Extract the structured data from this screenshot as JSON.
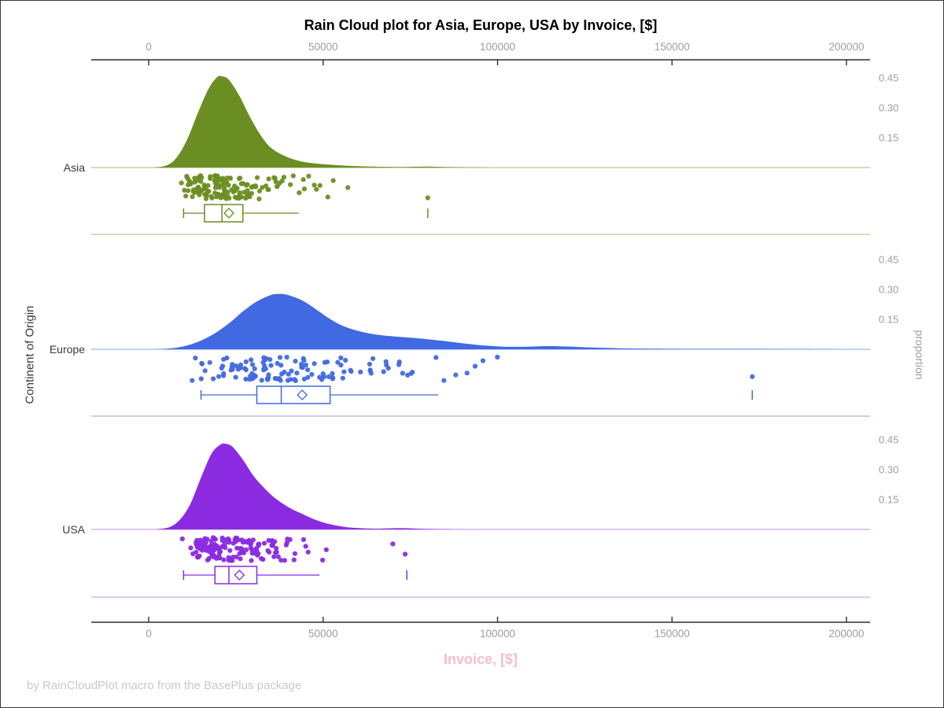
{
  "title": "Rain Cloud plot for Asia, Europe, USA by Invoice, [$]",
  "footer": "by RainCloudPlot macro from the BasePlus package",
  "x_axis": {
    "label": "Invoice, [$]",
    "label_color": "#f8bdca",
    "range": [
      0,
      200000
    ],
    "ticks": [
      0,
      50000,
      100000,
      150000,
      200000
    ],
    "tick_labels": [
      "0",
      "50000",
      "100000",
      "150000",
      "200000"
    ]
  },
  "y_axis": {
    "label": "Continent of Origin",
    "categories": [
      "Asia",
      "Europe",
      "USA"
    ]
  },
  "y2_axis": {
    "label": "proportion",
    "ticks": [
      0.15,
      0.3,
      0.45
    ],
    "tick_labels": [
      "0.15",
      "0.30",
      "0.45"
    ]
  },
  "chart_data": {
    "type": "raincloud (half-violin density + jittered strip + box plot per category)",
    "title": "Rain Cloud plot for Asia, Europe, USA by Invoice, [$]",
    "xlabel": "Invoice, [$]",
    "ylabel": "Continent of Origin",
    "y2label": "proportion",
    "xlim": [
      0,
      200000
    ],
    "proportion_ticks": [
      0.15,
      0.3,
      0.45
    ],
    "legend": "none",
    "grid": "off",
    "groups": [
      {
        "name": "Asia",
        "color": "#6B8E23",
        "light_color": "#b9c98f",
        "density_peak": {
          "x": 20500,
          "proportion": 0.46
        },
        "density": [
          [
            1000,
            0
          ],
          [
            5000,
            0.01
          ],
          [
            8000,
            0.05
          ],
          [
            11000,
            0.14
          ],
          [
            14000,
            0.27
          ],
          [
            17000,
            0.39
          ],
          [
            19500,
            0.452
          ],
          [
            21000,
            0.458
          ],
          [
            23000,
            0.44
          ],
          [
            26000,
            0.36
          ],
          [
            29000,
            0.255
          ],
          [
            32000,
            0.165
          ],
          [
            35000,
            0.1
          ],
          [
            39000,
            0.058
          ],
          [
            43000,
            0.034
          ],
          [
            48000,
            0.02
          ],
          [
            54000,
            0.012
          ],
          [
            60000,
            0.007
          ],
          [
            67000,
            0.004
          ],
          [
            73000,
            0.003
          ],
          [
            79000,
            0.005
          ],
          [
            85000,
            0.003
          ],
          [
            92000,
            0.001
          ],
          [
            100000,
            0
          ]
        ],
        "box": {
          "min": 10000,
          "q1": 16000,
          "median": 21000,
          "mean": 23000,
          "q3": 27000,
          "max": 43000,
          "outliers": [
            80000
          ]
        },
        "rain": {
          "n": 150,
          "median": 21000,
          "log_sigma": 0.4,
          "clamp": [
            8500,
            62000
          ],
          "extras": [
            80000
          ]
        }
      },
      {
        "name": "Europe",
        "color": "#4169E1",
        "light_color": "#9db8f0",
        "density_peak": {
          "x": 37500,
          "proportion": 0.28
        },
        "density": [
          [
            2000,
            0
          ],
          [
            8000,
            0.008
          ],
          [
            13000,
            0.03
          ],
          [
            18000,
            0.07
          ],
          [
            23000,
            0.13
          ],
          [
            27000,
            0.19
          ],
          [
            31000,
            0.24
          ],
          [
            35000,
            0.272
          ],
          [
            37500,
            0.278
          ],
          [
            40000,
            0.272
          ],
          [
            44000,
            0.245
          ],
          [
            48000,
            0.2
          ],
          [
            52000,
            0.152
          ],
          [
            56000,
            0.115
          ],
          [
            61000,
            0.088
          ],
          [
            66000,
            0.072
          ],
          [
            72000,
            0.062
          ],
          [
            78000,
            0.054
          ],
          [
            84000,
            0.043
          ],
          [
            90000,
            0.03
          ],
          [
            96000,
            0.019
          ],
          [
            102000,
            0.013
          ],
          [
            108000,
            0.013
          ],
          [
            114000,
            0.016
          ],
          [
            120000,
            0.014
          ],
          [
            127000,
            0.009
          ],
          [
            135000,
            0.005
          ],
          [
            145000,
            0.003
          ],
          [
            158000,
            0.002
          ],
          [
            172000,
            0.002
          ],
          [
            185000,
            0.001
          ],
          [
            200000,
            0
          ]
        ],
        "box": {
          "min": 15000,
          "q1": 31000,
          "median": 38000,
          "mean": 44000,
          "q3": 52000,
          "max": 83000,
          "outliers": [
            173000
          ]
        },
        "rain": {
          "n": 125,
          "median": 38000,
          "log_sigma": 0.48,
          "clamp": [
            12000,
            126000
          ],
          "extras": [
            173000
          ]
        }
      },
      {
        "name": "USA",
        "color": "#8A2BE2",
        "light_color": "#c9a6ee",
        "density_peak": {
          "x": 21500,
          "proportion": 0.43
        },
        "density": [
          [
            2000,
            0
          ],
          [
            6000,
            0.012
          ],
          [
            9000,
            0.05
          ],
          [
            12000,
            0.13
          ],
          [
            15000,
            0.26
          ],
          [
            18000,
            0.38
          ],
          [
            20500,
            0.425
          ],
          [
            22000,
            0.43
          ],
          [
            24000,
            0.415
          ],
          [
            27000,
            0.35
          ],
          [
            30000,
            0.27
          ],
          [
            33000,
            0.21
          ],
          [
            36000,
            0.16
          ],
          [
            40000,
            0.112
          ],
          [
            44000,
            0.078
          ],
          [
            48000,
            0.047
          ],
          [
            52000,
            0.026
          ],
          [
            56000,
            0.013
          ],
          [
            60000,
            0.007
          ],
          [
            65000,
            0.004
          ],
          [
            70000,
            0.006
          ],
          [
            74000,
            0.006
          ],
          [
            79000,
            0.003
          ],
          [
            86000,
            0.001
          ],
          [
            93000,
            0
          ]
        ],
        "box": {
          "min": 10000,
          "q1": 19000,
          "median": 23000,
          "mean": 26000,
          "q3": 31000,
          "max": 49000,
          "outliers": [
            74000
          ]
        },
        "rain": {
          "n": 150,
          "median": 23000,
          "log_sigma": 0.37,
          "clamp": [
            9000,
            58000
          ],
          "extras": [
            70000,
            73500
          ]
        }
      }
    ]
  }
}
